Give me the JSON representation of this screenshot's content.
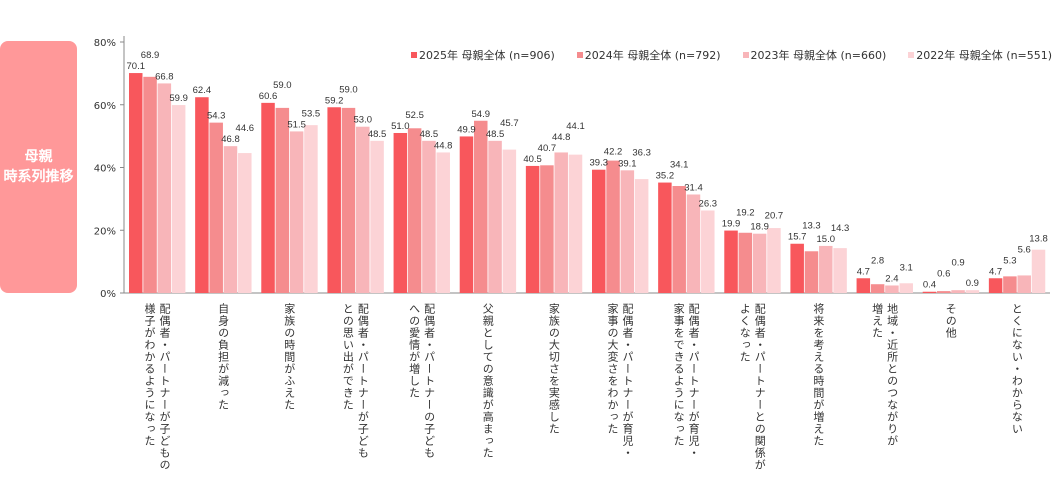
{
  "side_label": "母親\n時系列推移",
  "chart_data": {
    "type": "bar",
    "title": "",
    "xlabel": "",
    "ylabel": "",
    "ylim": [
      0,
      80
    ],
    "yticks": [
      "0%",
      "20%",
      "40%",
      "60%",
      "80%"
    ],
    "legend_position": "top-right",
    "categories": [
      "配偶者・パートナーが子どもの\n様子がわかるようになった",
      "自身の負担が減った",
      "家族の時間がふえた",
      "配偶者・パートナーが子ども\nとの思い出ができた",
      "配偶者・パートナーの子ども\nへの愛情が増した",
      "父親としての意識が高まった",
      "家族の大切さを実感した",
      "配偶者・パートナーが育児・\n家事の大変さをわかった",
      "配偶者・パートナーが育児・\n家事をできるようになった",
      "配偶者・パートナーとの関係が\nよくなった",
      "将来を考える時間が増えた",
      "地域・近所とのつながりが\n増えた",
      "その他",
      "とくにない・わからない"
    ],
    "series": [
      {
        "name": "2025年 母親全体 (n=906)",
        "color": "#f8575c",
        "values": [
          70.1,
          62.4,
          60.6,
          59.2,
          51.0,
          49.9,
          40.5,
          39.3,
          35.2,
          19.9,
          15.7,
          4.7,
          0.4,
          4.7
        ]
      },
      {
        "name": "2024年 母親全体 (n=792)",
        "color": "#f58c8e",
        "values": [
          68.9,
          54.3,
          59.0,
          59.0,
          52.5,
          54.9,
          40.7,
          42.2,
          34.1,
          19.2,
          13.3,
          2.8,
          0.6,
          5.3
        ]
      },
      {
        "name": "2023年 母親全体 (n=660)",
        "color": "#f8b5b9",
        "values": [
          66.8,
          46.8,
          51.5,
          53.0,
          48.5,
          48.5,
          44.8,
          39.1,
          31.4,
          18.9,
          15.0,
          2.4,
          0.9,
          5.6
        ]
      },
      {
        "name": "2022年 母親全体 (n=551)",
        "color": "#fcd3d6",
        "values": [
          59.9,
          44.6,
          53.5,
          48.5,
          44.8,
          45.7,
          44.1,
          36.3,
          26.3,
          20.7,
          14.3,
          3.1,
          0.9,
          13.8
        ]
      }
    ]
  }
}
